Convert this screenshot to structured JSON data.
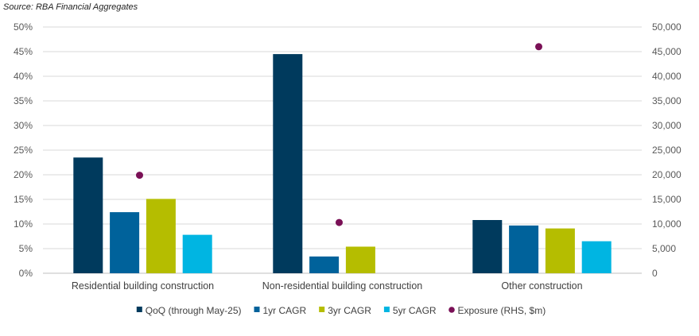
{
  "source_note": "Source: RBA Financial Aggregates",
  "chart_data": {
    "type": "bar",
    "categories": [
      "Residential building construction",
      "Non-residential building construction",
      "Other construction"
    ],
    "series": [
      {
        "name": "QoQ (through May-25)",
        "color": "#003a5d",
        "values": [
          23.5,
          44.5,
          10.8
        ]
      },
      {
        "name": "1yr CAGR",
        "color": "#00629b",
        "values": [
          12.4,
          3.4,
          9.7
        ]
      },
      {
        "name": "3yr CAGR",
        "color": "#b5bd00",
        "values": [
          15.1,
          5.4,
          9.1
        ]
      },
      {
        "name": "5yr CAGR",
        "color": "#00b5e2",
        "values": [
          7.8,
          null,
          6.5
        ]
      }
    ],
    "secondary_series": {
      "name": "Exposure (RHS, $m)",
      "type": "scatter",
      "color": "#7a1056",
      "values": [
        19900,
        10300,
        46000
      ]
    },
    "y_left": {
      "ylim": [
        0,
        50
      ],
      "ticks": [
        "0%",
        "5%",
        "10%",
        "15%",
        "20%",
        "25%",
        "30%",
        "35%",
        "40%",
        "45%",
        "50%"
      ]
    },
    "y_right": {
      "ylim": [
        0,
        50000
      ],
      "ticks": [
        "0",
        "5,000",
        "10,000",
        "15,000",
        "20,000",
        "25,000",
        "30,000",
        "35,000",
        "40,000",
        "45,000",
        "50,000"
      ]
    },
    "grid": true,
    "legend_position": "bottom"
  }
}
